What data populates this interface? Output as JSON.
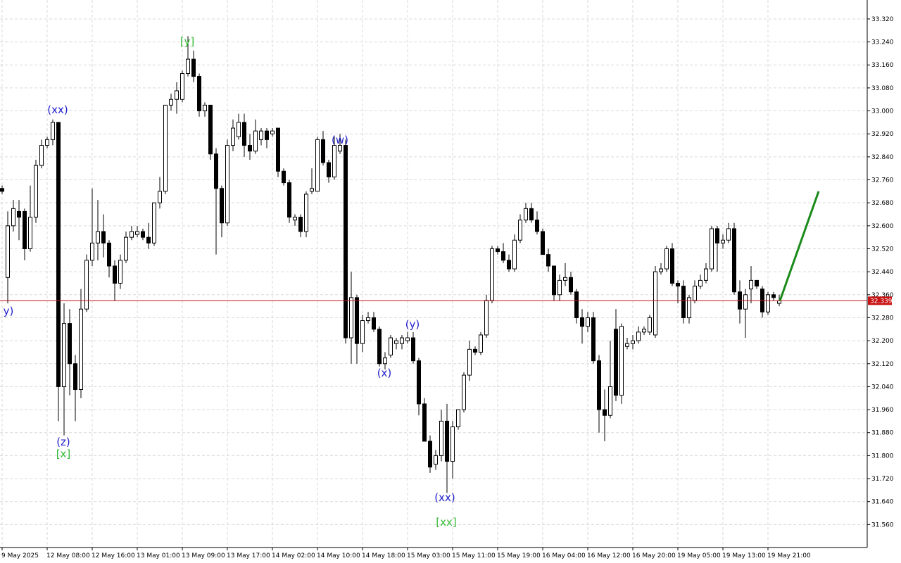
{
  "chart_data": {
    "type": "candlestick",
    "categories": [
      "9 May 2025",
      null,
      null,
      null,
      null,
      null,
      null,
      null,
      "12 May 08:00",
      null,
      null,
      null,
      null,
      null,
      null,
      null,
      "12 May 16:00",
      null,
      null,
      null,
      null,
      null,
      null,
      null,
      "13 May 01:00",
      null,
      null,
      null,
      null,
      null,
      null,
      null,
      "13 May 09:00",
      null,
      null,
      null,
      null,
      null,
      null,
      null,
      "13 May 17:00",
      null,
      null,
      null,
      null,
      null,
      null,
      null,
      "14 May 02:00",
      null,
      null,
      null,
      null,
      null,
      null,
      null,
      "14 May 10:00",
      null,
      null,
      null,
      null,
      null,
      null,
      null,
      "14 May 18:00",
      null,
      null,
      null,
      null,
      null,
      null,
      null,
      "15 May 03:00",
      null,
      null,
      null,
      null,
      null,
      null,
      null,
      "15 May 11:00",
      null,
      null,
      null,
      null,
      null,
      null,
      null,
      "15 May 19:00",
      null,
      null,
      null,
      null,
      null,
      null,
      null,
      "16 May 04:00",
      null,
      null,
      null,
      null,
      null,
      null,
      null,
      "16 May 12:00",
      null,
      null,
      null,
      null,
      null,
      null,
      null,
      "16 May 20:00",
      null,
      null,
      null,
      null,
      null,
      null,
      null,
      "19 May 05:00",
      null,
      null,
      null,
      null,
      null,
      null,
      null,
      "19 May 13:00",
      null,
      null,
      null,
      null,
      null,
      null,
      null,
      "19 May 21:00",
      null,
      null
    ],
    "open": [
      32.73,
      32.42,
      32.6,
      32.65,
      32.65,
      32.52,
      32.63,
      32.81,
      32.88,
      32.9,
      32.96,
      32.04,
      32.26,
      32.12,
      32.03,
      32.31,
      32.48,
      32.54,
      32.58,
      32.54,
      32.46,
      32.4,
      32.48,
      32.56,
      32.57,
      32.58,
      32.56,
      32.54,
      32.68,
      32.72,
      33.02,
      33.04,
      33.04,
      33.13,
      33.18,
      33.12,
      33.0,
      33.02,
      32.85,
      32.73,
      32.61,
      32.88,
      32.91,
      32.96,
      32.88,
      32.86,
      32.9,
      32.93,
      32.92,
      32.94,
      32.79,
      32.75,
      32.62,
      32.63,
      32.58,
      32.72,
      32.72,
      32.9,
      32.82,
      32.77,
      32.86,
      32.88,
      32.21,
      32.35,
      32.19,
      32.27,
      32.28,
      32.24,
      32.12,
      32.15,
      32.19,
      32.19,
      32.2,
      32.21,
      32.13,
      31.98,
      31.85,
      31.77,
      31.8,
      31.92,
      31.78,
      31.9,
      31.96,
      32.08,
      32.17,
      32.16,
      32.22,
      32.34,
      32.52,
      32.51,
      32.48,
      32.45,
      32.55,
      32.62,
      32.66,
      32.62,
      32.58,
      32.5,
      32.46,
      32.36,
      32.41,
      32.42,
      32.37,
      32.28,
      32.25,
      32.28,
      32.13,
      31.96,
      31.94,
      32.24,
      32.01,
      32.18,
      32.19,
      32.2,
      32.23,
      32.23,
      32.22,
      32.44,
      32.45,
      32.52,
      32.4,
      32.39,
      32.28,
      32.34,
      32.39,
      32.41,
      32.45,
      32.59,
      32.54,
      32.55,
      32.59,
      32.37,
      32.31,
      32.38,
      32.41,
      32.38,
      32.3,
      32.36,
      32.33
    ],
    "high": [
      32.74,
      32.65,
      32.69,
      32.69,
      32.66,
      32.74,
      32.83,
      32.9,
      32.91,
      32.97,
      32.96,
      32.33,
      32.31,
      32.15,
      32.38,
      32.5,
      32.73,
      32.69,
      32.64,
      32.55,
      32.48,
      32.5,
      32.58,
      32.6,
      32.6,
      32.59,
      32.61,
      32.68,
      32.77,
      33.02,
      33.06,
      33.1,
      33.14,
      33.26,
      33.21,
      33.13,
      33.03,
      33.02,
      32.87,
      32.74,
      32.9,
      32.97,
      32.99,
      32.99,
      32.92,
      32.97,
      32.94,
      32.94,
      32.94,
      32.94,
      32.8,
      32.76,
      32.64,
      32.64,
      32.72,
      32.8,
      32.91,
      32.93,
      32.83,
      32.91,
      32.92,
      32.9,
      32.44,
      32.36,
      32.29,
      32.3,
      32.3,
      32.25,
      32.16,
      32.22,
      32.21,
      32.22,
      32.23,
      32.23,
      32.14,
      32.0,
      31.87,
      31.82,
      31.96,
      31.98,
      31.92,
      31.96,
      32.09,
      32.2,
      32.18,
      32.23,
      32.36,
      32.53,
      32.53,
      32.54,
      32.5,
      32.57,
      32.64,
      32.68,
      32.68,
      32.65,
      32.59,
      32.52,
      32.46,
      32.43,
      32.47,
      32.44,
      32.38,
      32.31,
      32.3,
      32.3,
      32.15,
      32.03,
      32.2,
      32.31,
      32.26,
      32.21,
      32.22,
      32.25,
      32.25,
      32.29,
      32.46,
      32.47,
      32.53,
      32.54,
      32.41,
      32.41,
      32.36,
      32.41,
      32.43,
      32.47,
      32.6,
      32.6,
      32.57,
      32.61,
      32.61,
      32.41,
      32.38,
      32.46,
      32.41,
      32.39,
      32.37,
      32.37,
      32.36
    ],
    "low": [
      32.71,
      32.33,
      32.58,
      32.55,
      32.48,
      32.51,
      32.61,
      32.8,
      32.87,
      32.88,
      31.92,
      31.87,
      32.01,
      31.92,
      32.0,
      32.3,
      32.46,
      32.48,
      32.49,
      32.42,
      32.34,
      32.38,
      32.47,
      32.55,
      32.56,
      32.55,
      32.52,
      32.53,
      32.66,
      32.71,
      33.0,
      32.99,
      33.03,
      33.12,
      33.1,
      32.98,
      32.98,
      32.83,
      32.5,
      32.56,
      32.6,
      32.86,
      32.9,
      32.84,
      32.83,
      32.85,
      32.88,
      32.87,
      32.91,
      32.77,
      32.74,
      32.61,
      32.6,
      32.56,
      32.56,
      32.71,
      32.72,
      32.81,
      32.75,
      32.76,
      32.85,
      32.19,
      32.12,
      32.12,
      32.16,
      32.26,
      32.23,
      32.11,
      32.1,
      32.14,
      32.17,
      32.17,
      32.19,
      32.12,
      31.94,
      31.85,
      31.74,
      31.75,
      31.78,
      31.67,
      31.72,
      31.89,
      31.95,
      32.06,
      32.15,
      32.15,
      32.21,
      32.33,
      32.5,
      32.47,
      32.44,
      32.44,
      32.54,
      32.61,
      32.61,
      32.57,
      32.5,
      32.44,
      32.34,
      32.34,
      32.39,
      32.36,
      32.26,
      32.19,
      32.23,
      32.12,
      31.88,
      31.85,
      31.93,
      31.99,
      31.98,
      32.17,
      32.17,
      32.19,
      32.22,
      32.22,
      32.21,
      32.43,
      32.44,
      32.39,
      32.33,
      32.26,
      32.26,
      32.33,
      32.38,
      32.4,
      32.44,
      32.44,
      32.52,
      32.54,
      32.36,
      32.26,
      32.21,
      32.33,
      32.38,
      32.28,
      32.29,
      32.34,
      32.32
    ],
    "close": [
      32.72,
      32.6,
      32.66,
      32.63,
      32.52,
      32.63,
      32.81,
      32.88,
      32.9,
      32.96,
      32.04,
      32.26,
      32.12,
      32.03,
      32.31,
      32.48,
      32.54,
      32.58,
      32.54,
      32.46,
      32.4,
      32.48,
      32.56,
      32.58,
      32.58,
      32.56,
      32.54,
      32.68,
      32.72,
      33.02,
      33.04,
      33.07,
      33.13,
      33.18,
      33.12,
      33.0,
      33.02,
      32.85,
      32.73,
      32.61,
      32.88,
      32.94,
      32.96,
      32.88,
      32.86,
      32.93,
      32.93,
      32.9,
      32.93,
      32.79,
      32.75,
      32.63,
      32.63,
      32.58,
      32.71,
      32.73,
      32.9,
      32.82,
      32.77,
      32.88,
      32.88,
      32.21,
      32.35,
      32.19,
      32.27,
      32.28,
      32.24,
      32.12,
      32.14,
      32.21,
      32.2,
      32.21,
      32.21,
      32.13,
      31.98,
      31.85,
      31.76,
      31.8,
      31.92,
      31.78,
      31.9,
      31.96,
      32.08,
      32.17,
      32.16,
      32.22,
      32.34,
      32.52,
      32.51,
      32.48,
      32.45,
      32.55,
      32.62,
      32.66,
      32.62,
      32.58,
      32.5,
      32.46,
      32.36,
      32.41,
      32.42,
      32.37,
      32.28,
      32.25,
      32.28,
      32.13,
      31.96,
      31.94,
      32.04,
      32.01,
      32.25,
      32.19,
      32.2,
      32.23,
      32.24,
      32.28,
      32.44,
      32.45,
      32.52,
      32.4,
      32.39,
      32.28,
      32.35,
      32.39,
      32.41,
      32.45,
      32.59,
      32.54,
      32.55,
      32.59,
      32.37,
      32.31,
      32.36,
      32.41,
      32.39,
      32.3,
      32.36,
      32.35,
      32.339
    ],
    "up_color": "#ffffff",
    "down_color": "#000000",
    "outline_color": "#000000",
    "forecast": {
      "values": [
        32.339,
        32.72
      ],
      "color": "#1a8a1a"
    },
    "price_line_color": "#c81414",
    "annotations": [
      {
        "text": "y)",
        "color": "#2222cc"
      },
      {
        "text": "(xx)",
        "color": "#2222cc"
      },
      {
        "text": "(z)",
        "color": "#2222cc"
      },
      {
        "text": "[x]",
        "color": "#33bb33"
      },
      {
        "text": "[y]",
        "color": "#33bb33"
      },
      {
        "text": "(w)",
        "color": "#2222cc"
      },
      {
        "text": "(x)",
        "color": "#2222cc"
      },
      {
        "text": "(y)",
        "color": "#2222cc"
      },
      {
        "text": "(xx)",
        "color": "#2222cc"
      },
      {
        "text": "[xx]",
        "color": "#33bb33"
      }
    ],
    "ylim": [
      31.48,
      33.386
    ],
    "yticks": [
      {
        "value": 31.56,
        "label": "31.560"
      },
      {
        "value": 31.64,
        "label": "31.640"
      },
      {
        "value": 31.72,
        "label": "31.720"
      },
      {
        "value": 31.8,
        "label": "31.800"
      },
      {
        "value": 31.88,
        "label": "31.880"
      },
      {
        "value": 31.96,
        "label": "31.960"
      },
      {
        "value": 32.04,
        "label": "32.040"
      },
      {
        "value": 32.12,
        "label": "32.120"
      },
      {
        "value": 32.2,
        "label": "32.200"
      },
      {
        "value": 32.28,
        "label": "32.280"
      },
      {
        "value": 32.36,
        "label": "32.360"
      },
      {
        "value": 32.44,
        "label": "32.440"
      },
      {
        "value": 32.52,
        "label": "32.520"
      },
      {
        "value": 32.6,
        "label": "32.600"
      },
      {
        "value": 32.68,
        "label": "32.680"
      },
      {
        "value": 32.76,
        "label": "32.760"
      },
      {
        "value": 32.84,
        "label": "32.840"
      },
      {
        "value": 32.92,
        "label": "32.920"
      },
      {
        "value": 33.0,
        "label": "33.000"
      },
      {
        "value": 33.08,
        "label": "33.080"
      },
      {
        "value": 33.16,
        "label": "33.160"
      },
      {
        "value": 33.24,
        "label": "33.240"
      },
      {
        "value": 33.32,
        "label": "33.320"
      }
    ],
    "grid": true
  }
}
